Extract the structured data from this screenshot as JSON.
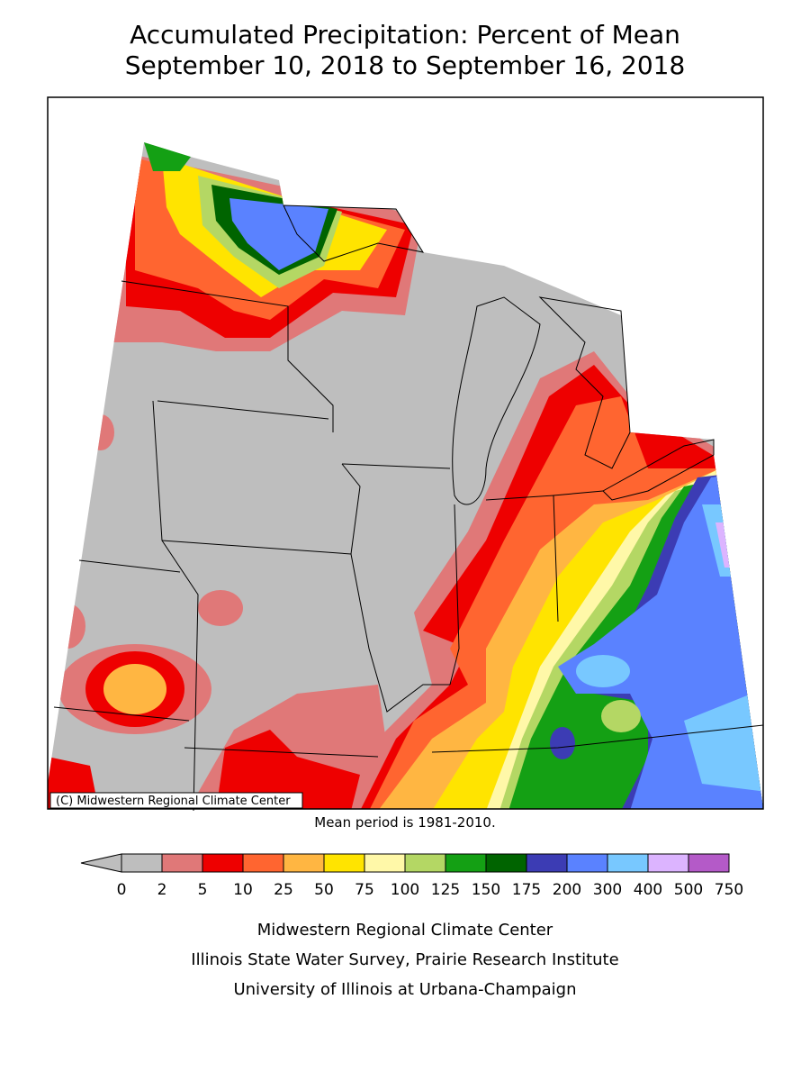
{
  "title": [
    "Accumulated Precipitation: Percent of Mean",
    "September 10, 2018 to September 16, 2018"
  ],
  "copyright": "(C) Midwestern Regional Climate Center",
  "note": "Mean period is 1981-2010.",
  "legend": {
    "ticks": [
      0,
      2,
      5,
      10,
      25,
      50,
      75,
      100,
      125,
      150,
      175,
      200,
      300,
      400,
      500,
      750
    ],
    "colors": [
      "#bebebe",
      "#e07878",
      "#ee0000",
      "#ff6530",
      "#ffb642",
      "#ffe400",
      "#fff8a8",
      "#b4d764",
      "#14a014",
      "#006400",
      "#3c3cb4",
      "#5a82ff",
      "#78c8ff",
      "#dcb4ff",
      "#b45ac8"
    ]
  },
  "footer": [
    "Midwestern Regional Climate Center",
    "Illinois State Water Survey, Prairie Research Institute",
    "University of Illinois at Urbana-Champaign"
  ]
}
